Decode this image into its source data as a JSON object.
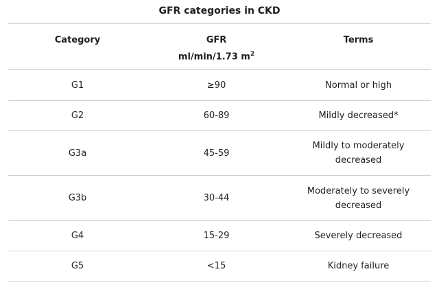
{
  "title": "GFR categories in CKD",
  "table": {
    "headers": {
      "category": "Category",
      "gfr_line1": "GFR",
      "gfr_line2": "ml/min/1.73 m",
      "gfr_superscript": "2",
      "terms": "Terms"
    },
    "rows": [
      {
        "category": "G1",
        "gfr": "≥90",
        "terms": "Normal or high"
      },
      {
        "category": "G2",
        "gfr": "60-89",
        "terms": "Mildly decreased*"
      },
      {
        "category": "G3a",
        "gfr": "45-59",
        "terms": "Mildly to moderately decreased"
      },
      {
        "category": "G3b",
        "gfr": "30-44",
        "terms": "Moderately to severely decreased"
      },
      {
        "category": "G4",
        "gfr": "15-29",
        "terms": "Severely decreased"
      },
      {
        "category": "G5",
        "gfr": "<15",
        "terms": "Kidney failure"
      }
    ]
  }
}
